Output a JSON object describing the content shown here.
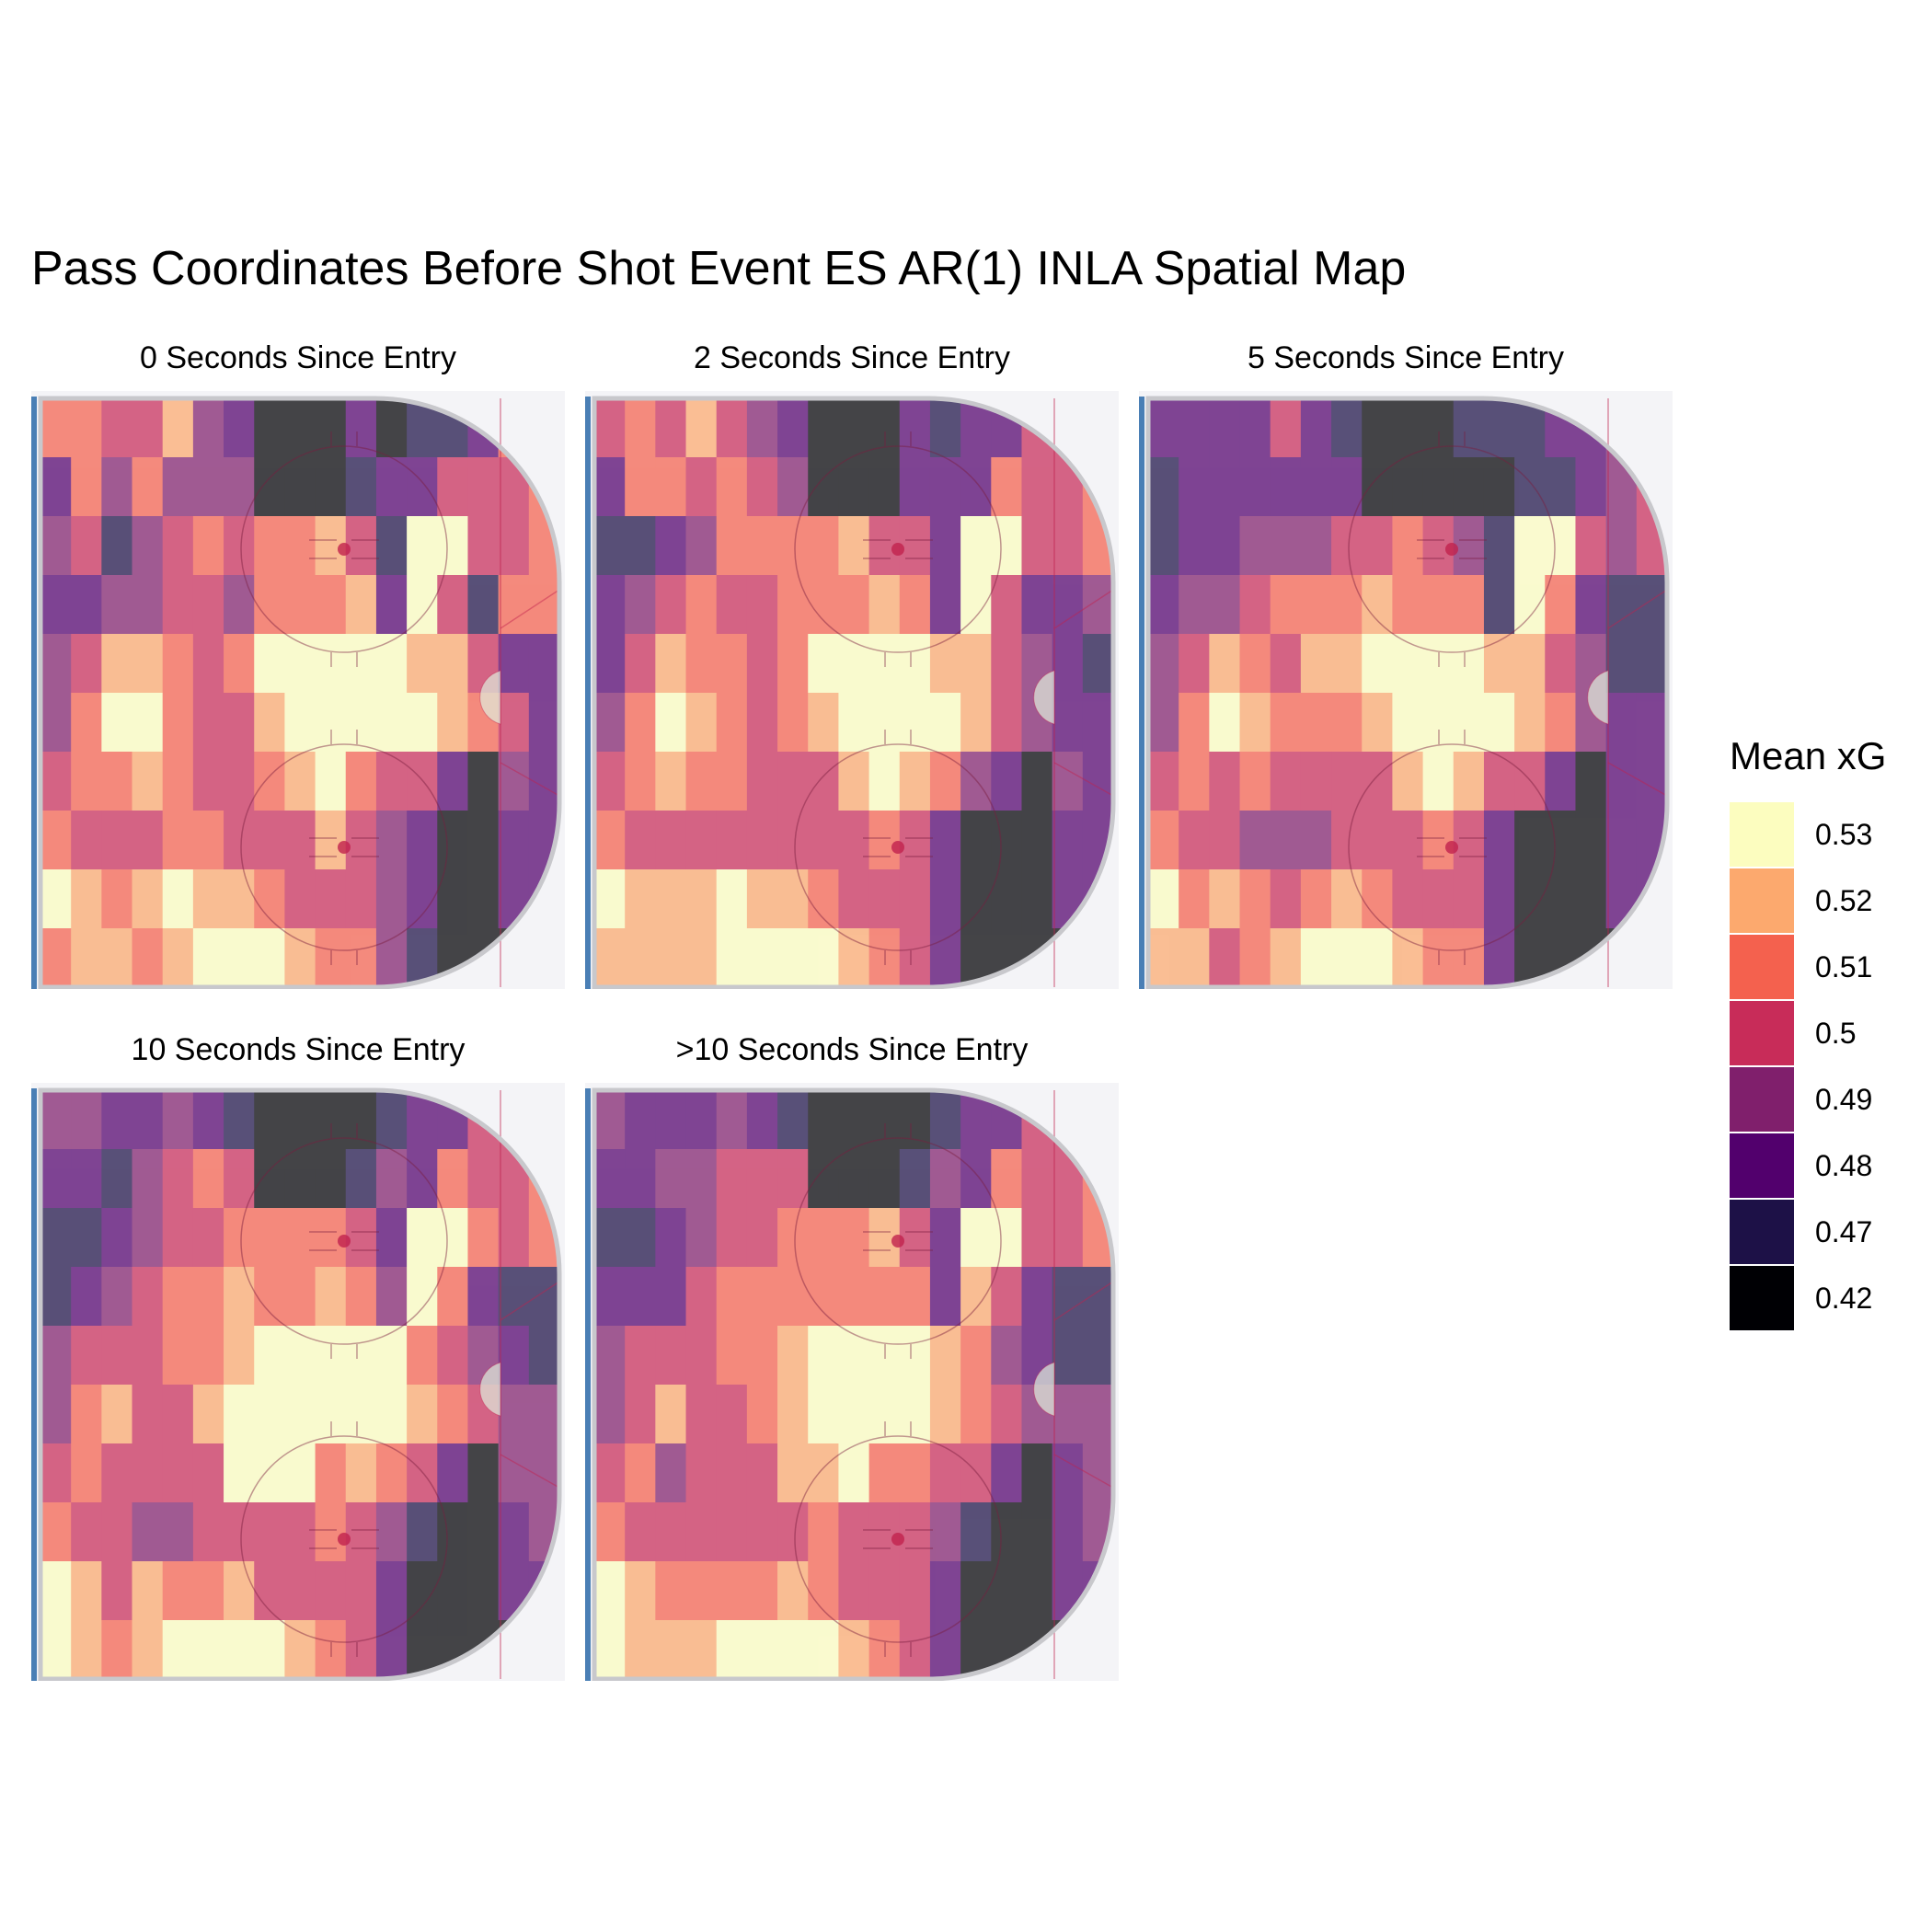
{
  "title": "Pass Coordinates Before Shot Event ES AR(1) INLA Spatial Map",
  "chart_data": {
    "type": "heatmap",
    "title": "Pass Coordinates Before Shot Event ES AR(1) INLA Spatial Map",
    "xlabel": "",
    "ylabel": "",
    "legend": {
      "title": "Mean xG",
      "placement": "right",
      "entries": [
        {
          "label": "0.53",
          "color": "#FCFDBF"
        },
        {
          "label": "0.52",
          "color": "#FCA96E"
        },
        {
          "label": "0.51",
          "color": "#F4614E"
        },
        {
          "label": "0.5",
          "color": "#C82C59"
        },
        {
          "label": "0.49",
          "color": "#801F6C"
        },
        {
          "label": "0.48",
          "color": "#52006D"
        },
        {
          "label": "0.47",
          "color": "#1D1147"
        },
        {
          "label": "0.42",
          "color": "#000004"
        }
      ]
    },
    "panels": [
      {
        "label": "0 Seconds Since Entry",
        "grid": [
          [
            2,
            2,
            3,
            3,
            1,
            4,
            5,
            7,
            7,
            7,
            5,
            7,
            6,
            6,
            5,
            2,
            2
          ],
          [
            5,
            2,
            4,
            2,
            4,
            4,
            4,
            7,
            7,
            7,
            6,
            5,
            5,
            3,
            3,
            3,
            2
          ],
          [
            4,
            3,
            6,
            4,
            3,
            2,
            3,
            2,
            2,
            1,
            3,
            6,
            0,
            0,
            3,
            3,
            2
          ],
          [
            5,
            5,
            4,
            4,
            3,
            3,
            4,
            2,
            2,
            2,
            1,
            5,
            0,
            3,
            6,
            2,
            2
          ],
          [
            4,
            3,
            1,
            1,
            2,
            3,
            2,
            0,
            0,
            0,
            0,
            0,
            1,
            1,
            3,
            5,
            5
          ],
          [
            4,
            2,
            0,
            0,
            2,
            3,
            3,
            1,
            0,
            0,
            0,
            0,
            0,
            1,
            2,
            3,
            5
          ],
          [
            3,
            2,
            2,
            1,
            2,
            3,
            3,
            2,
            1,
            0,
            2,
            3,
            3,
            5,
            7,
            4,
            5
          ],
          [
            2,
            3,
            3,
            3,
            2,
            2,
            3,
            3,
            3,
            1,
            3,
            4,
            5,
            7,
            7,
            5,
            5
          ],
          [
            0,
            1,
            2,
            1,
            0,
            1,
            1,
            2,
            3,
            3,
            3,
            4,
            5,
            7,
            7,
            5,
            5
          ],
          [
            2,
            1,
            1,
            2,
            1,
            0,
            0,
            0,
            1,
            2,
            2,
            4,
            6,
            7,
            7,
            7,
            7
          ]
        ]
      },
      {
        "label": "2 Seconds Since Entry",
        "grid": [
          [
            3,
            2,
            3,
            1,
            3,
            4,
            5,
            7,
            7,
            7,
            5,
            6,
            5,
            5,
            3,
            3,
            2
          ],
          [
            5,
            2,
            2,
            3,
            2,
            3,
            4,
            7,
            7,
            7,
            5,
            5,
            5,
            2,
            3,
            3,
            2
          ],
          [
            6,
            6,
            5,
            4,
            2,
            2,
            2,
            2,
            1,
            3,
            3,
            5,
            0,
            0,
            3,
            3,
            2
          ],
          [
            5,
            4,
            3,
            2,
            3,
            3,
            2,
            2,
            2,
            1,
            2,
            5,
            0,
            3,
            5,
            5,
            4
          ],
          [
            5,
            3,
            1,
            2,
            2,
            3,
            2,
            0,
            0,
            0,
            0,
            1,
            1,
            3,
            4,
            5,
            6
          ],
          [
            4,
            2,
            0,
            1,
            2,
            3,
            2,
            1,
            0,
            0,
            0,
            0,
            1,
            3,
            4,
            5,
            5
          ],
          [
            3,
            2,
            1,
            2,
            2,
            3,
            3,
            3,
            1,
            0,
            1,
            2,
            4,
            5,
            7,
            4,
            5
          ],
          [
            2,
            3,
            3,
            3,
            3,
            3,
            3,
            3,
            3,
            2,
            3,
            5,
            7,
            7,
            7,
            5,
            5
          ],
          [
            0,
            1,
            1,
            1,
            0,
            1,
            1,
            2,
            3,
            3,
            3,
            5,
            7,
            7,
            7,
            5,
            5
          ],
          [
            1,
            1,
            1,
            1,
            0,
            0,
            0,
            0,
            1,
            2,
            3,
            5,
            7,
            7,
            7,
            7,
            7
          ]
        ]
      },
      {
        "label": "5 Seconds Since Entry",
        "grid": [
          [
            5,
            5,
            5,
            5,
            3,
            5,
            6,
            7,
            7,
            7,
            6,
            6,
            6,
            5,
            5,
            4,
            3
          ],
          [
            6,
            5,
            5,
            5,
            5,
            5,
            5,
            7,
            7,
            7,
            7,
            7,
            6,
            6,
            5,
            4,
            3
          ],
          [
            6,
            5,
            5,
            4,
            4,
            4,
            3,
            3,
            2,
            3,
            4,
            6,
            0,
            0,
            3,
            4,
            3
          ],
          [
            5,
            4,
            4,
            3,
            2,
            2,
            2,
            1,
            2,
            2,
            2,
            6,
            0,
            2,
            5,
            6,
            6
          ],
          [
            4,
            3,
            1,
            2,
            3,
            1,
            1,
            0,
            0,
            0,
            0,
            1,
            1,
            3,
            4,
            6,
            6
          ],
          [
            4,
            2,
            0,
            1,
            2,
            2,
            2,
            1,
            0,
            0,
            0,
            0,
            1,
            2,
            4,
            5,
            5
          ],
          [
            3,
            2,
            3,
            2,
            3,
            3,
            3,
            3,
            1,
            0,
            1,
            3,
            3,
            5,
            7,
            5,
            5
          ],
          [
            2,
            3,
            3,
            4,
            4,
            4,
            3,
            3,
            3,
            2,
            3,
            5,
            7,
            7,
            7,
            5,
            5
          ],
          [
            0,
            2,
            1,
            2,
            3,
            2,
            1,
            2,
            3,
            3,
            3,
            5,
            7,
            7,
            7,
            5,
            5
          ],
          [
            1,
            1,
            3,
            2,
            1,
            0,
            0,
            0,
            1,
            2,
            2,
            5,
            7,
            7,
            7,
            7,
            7
          ]
        ]
      },
      {
        "label": "10 Seconds Since Entry",
        "grid": [
          [
            4,
            4,
            5,
            5,
            4,
            5,
            6,
            7,
            7,
            7,
            7,
            6,
            5,
            5,
            3,
            3,
            3
          ],
          [
            5,
            5,
            6,
            4,
            3,
            2,
            3,
            7,
            7,
            7,
            6,
            4,
            5,
            2,
            3,
            3,
            2
          ],
          [
            6,
            6,
            5,
            4,
            3,
            3,
            2,
            2,
            2,
            2,
            3,
            5,
            0,
            0,
            2,
            3,
            2
          ],
          [
            6,
            5,
            4,
            3,
            2,
            2,
            1,
            2,
            2,
            1,
            2,
            4,
            0,
            2,
            5,
            6,
            6
          ],
          [
            4,
            3,
            3,
            3,
            2,
            2,
            1,
            0,
            0,
            0,
            0,
            0,
            2,
            3,
            4,
            5,
            6
          ],
          [
            4,
            2,
            1,
            3,
            3,
            1,
            0,
            0,
            0,
            0,
            0,
            0,
            1,
            2,
            3,
            4,
            4
          ],
          [
            3,
            2,
            3,
            3,
            3,
            3,
            0,
            0,
            0,
            2,
            1,
            2,
            3,
            5,
            7,
            4,
            4
          ],
          [
            2,
            3,
            3,
            4,
            4,
            3,
            3,
            3,
            3,
            2,
            3,
            4,
            6,
            7,
            7,
            5,
            4
          ],
          [
            0,
            1,
            3,
            1,
            2,
            2,
            1,
            3,
            3,
            3,
            3,
            5,
            7,
            7,
            7,
            5,
            5
          ],
          [
            0,
            1,
            2,
            1,
            0,
            0,
            0,
            0,
            1,
            2,
            3,
            5,
            7,
            7,
            7,
            7,
            7
          ]
        ]
      },
      {
        "label": ">10 Seconds Since Entry",
        "grid": [
          [
            4,
            5,
            5,
            5,
            4,
            5,
            6,
            7,
            7,
            7,
            7,
            6,
            5,
            5,
            3,
            3,
            3
          ],
          [
            5,
            5,
            4,
            4,
            3,
            3,
            3,
            7,
            7,
            7,
            6,
            4,
            5,
            2,
            3,
            3,
            2
          ],
          [
            6,
            6,
            5,
            4,
            3,
            3,
            2,
            2,
            2,
            1,
            3,
            5,
            0,
            0,
            3,
            3,
            2
          ],
          [
            5,
            5,
            5,
            3,
            2,
            2,
            2,
            2,
            2,
            2,
            2,
            5,
            1,
            3,
            5,
            6,
            6
          ],
          [
            4,
            3,
            3,
            3,
            2,
            2,
            1,
            0,
            0,
            0,
            0,
            1,
            2,
            4,
            5,
            6,
            6
          ],
          [
            4,
            3,
            1,
            3,
            3,
            2,
            1,
            0,
            0,
            0,
            0,
            1,
            2,
            3,
            4,
            4,
            4
          ],
          [
            3,
            2,
            4,
            3,
            3,
            3,
            1,
            1,
            0,
            2,
            2,
            3,
            3,
            5,
            7,
            5,
            4
          ],
          [
            2,
            3,
            3,
            3,
            3,
            3,
            3,
            2,
            3,
            3,
            3,
            4,
            6,
            7,
            7,
            5,
            4
          ],
          [
            0,
            1,
            2,
            2,
            2,
            2,
            1,
            2,
            3,
            3,
            3,
            5,
            7,
            7,
            7,
            5,
            5
          ],
          [
            0,
            1,
            1,
            1,
            0,
            0,
            0,
            0,
            1,
            2,
            3,
            5,
            7,
            7,
            7,
            7,
            7
          ]
        ]
      }
    ]
  }
}
